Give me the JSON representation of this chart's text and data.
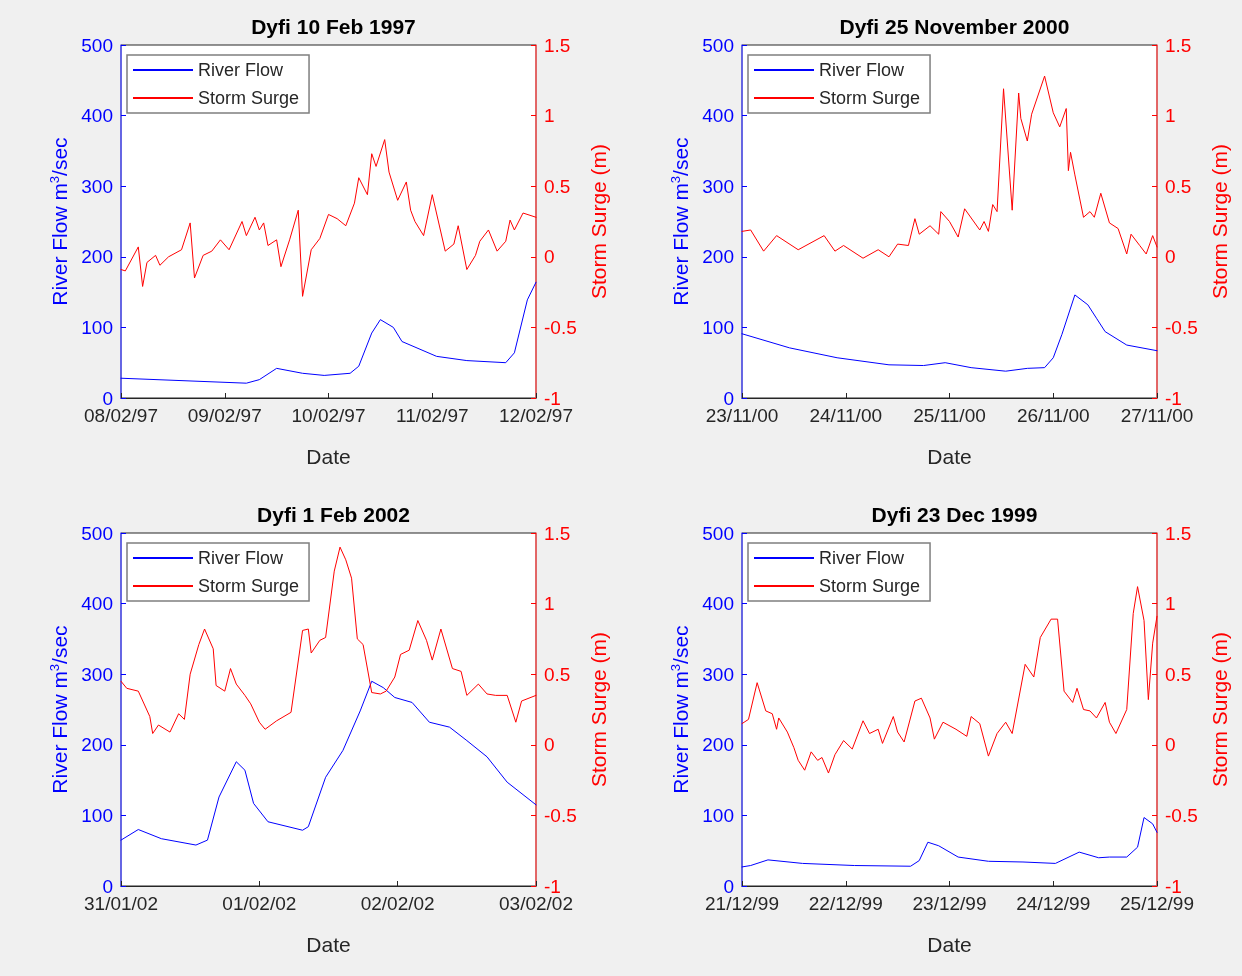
{
  "chart_data": [
    {
      "type": "line",
      "title": "Dyfi 10 Feb 1997",
      "xlabel": "Date",
      "ylabel": "River Flow m$^{3}$/sec",
      "y2label": "Storm Surge (m)",
      "legend": "top left",
      "grid": false,
      "xlim": [
        "1997-02-08T00:00",
        "1997-02-12T00:00"
      ],
      "xticks": [
        {
          "value": "1997-02-08",
          "label": "08/02/97"
        },
        {
          "value": "1997-02-09",
          "label": "09/02/97"
        },
        {
          "value": "1997-02-10",
          "label": "10/02/97"
        },
        {
          "value": "1997-02-11",
          "label": "11/02/97"
        },
        {
          "value": "1997-02-12",
          "label": "12/02/97"
        }
      ],
      "ylim": [
        0,
        500
      ],
      "yticks": [
        0,
        100,
        200,
        300,
        400,
        500
      ],
      "y2lim": [
        -1,
        1.5
      ],
      "y2ticks": [
        -1,
        -0.5,
        0,
        0.5,
        1,
        1.5
      ],
      "series": [
        {
          "name": "River Flow",
          "color": "#0000ff",
          "x": [
            "1997-02-08T00:00",
            "1997-02-09T05:00",
            "1997-02-09T08:00",
            "1997-02-09T12:00",
            "1997-02-09T18:00",
            "1997-02-09T23:00",
            "1997-02-10T05:00",
            "1997-02-10T07:00",
            "1997-02-10T10:00",
            "1997-02-10T12:00",
            "1997-02-10T15:00",
            "1997-02-10T17:00",
            "1997-02-11T01:00",
            "1997-02-11T08:00",
            "1997-02-11T17:00",
            "1997-02-11T19:00",
            "1997-02-11T22:00",
            "1997-02-12T00:00"
          ],
          "values": [
            28,
            21,
            26,
            42,
            35,
            32,
            35,
            45,
            92,
            111,
            100,
            80,
            59,
            53,
            50,
            64,
            139,
            164
          ]
        },
        {
          "name": "Storm Surge",
          "color": "#ff0000",
          "axis": "y2",
          "x": [
            "1997-02-08T00:00",
            "1997-02-08T01:00",
            "1997-02-08T04:00",
            "1997-02-08T05:00",
            "1997-02-08T06:00",
            "1997-02-08T08:00",
            "1997-02-08T09:00",
            "1997-02-08T11:00",
            "1997-02-08T14:00",
            "1997-02-08T16:00",
            "1997-02-08T17:00",
            "1997-02-08T19:00",
            "1997-02-08T21:00",
            "1997-02-08T23:00",
            "1997-02-09T01:00",
            "1997-02-09T04:00",
            "1997-02-09T05:00",
            "1997-02-09T07:00",
            "1997-02-09T08:00",
            "1997-02-09T09:00",
            "1997-02-09T10:00",
            "1997-02-09T12:00",
            "1997-02-09T13:00",
            "1997-02-09T15:00",
            "1997-02-09T17:00",
            "1997-02-09T18:00",
            "1997-02-09T20:00",
            "1997-02-09T22:00",
            "1997-02-10T00:00",
            "1997-02-10T02:00",
            "1997-02-10T04:00",
            "1997-02-10T06:00",
            "1997-02-10T07:00",
            "1997-02-10T09:00",
            "1997-02-10T10:00",
            "1997-02-10T11:00",
            "1997-02-10T13:00",
            "1997-02-10T14:00",
            "1997-02-10T16:00",
            "1997-02-10T18:00",
            "1997-02-10T19:00",
            "1997-02-10T20:00",
            "1997-02-10T22:00",
            "1997-02-11T00:00",
            "1997-02-11T03:00",
            "1997-02-11T05:00",
            "1997-02-11T06:00",
            "1997-02-11T08:00",
            "1997-02-11T10:00",
            "1997-02-11T11:00",
            "1997-02-11T13:00",
            "1997-02-11T15:00",
            "1997-02-11T17:00",
            "1997-02-11T18:00",
            "1997-02-11T19:00",
            "1997-02-11T21:00",
            "1997-02-12T00:00"
          ],
          "values": [
            -0.09,
            -0.1,
            0.07,
            -0.21,
            -0.04,
            0.01,
            -0.06,
            0,
            0.05,
            0.24,
            -0.15,
            0.01,
            0.04,
            0.12,
            0.05,
            0.25,
            0.15,
            0.28,
            0.19,
            0.24,
            0.08,
            0.12,
            -0.07,
            0.12,
            0.33,
            -0.28,
            0.05,
            0.13,
            0.3,
            0.27,
            0.22,
            0.38,
            0.56,
            0.44,
            0.73,
            0.64,
            0.83,
            0.6,
            0.4,
            0.53,
            0.33,
            0.25,
            0.15,
            0.44,
            0.04,
            0.09,
            0.22,
            -0.09,
            0.01,
            0.11,
            0.19,
            0.04,
            0.11,
            0.26,
            0.19,
            0.31,
            0.28
          ]
        }
      ]
    },
    {
      "type": "line",
      "title": "Dyfi 25 November 2000",
      "xlabel": "Date",
      "ylabel": "River Flow m$^{3}$/sec",
      "y2label": "Storm Surge (m)",
      "legend": "top left",
      "grid": false,
      "xlim": [
        "2000-11-23T00:00",
        "2000-11-27T00:00"
      ],
      "xticks": [
        {
          "value": "2000-11-23",
          "label": "23/11/00"
        },
        {
          "value": "2000-11-24",
          "label": "24/11/00"
        },
        {
          "value": "2000-11-25",
          "label": "25/11/00"
        },
        {
          "value": "2000-11-26",
          "label": "26/11/00"
        },
        {
          "value": "2000-11-27",
          "label": "27/11/00"
        }
      ],
      "ylim": [
        0,
        500
      ],
      "yticks": [
        0,
        100,
        200,
        300,
        400,
        500
      ],
      "y2lim": [
        -1,
        1.5
      ],
      "y2ticks": [
        -1,
        -0.5,
        0,
        0.5,
        1,
        1.5
      ],
      "series": [
        {
          "name": "River Flow",
          "color": "#0000ff",
          "x": [
            "2000-11-23T00:00",
            "2000-11-23T11:00",
            "2000-11-23T22:00",
            "2000-11-24T10:00",
            "2000-11-24T18:00",
            "2000-11-24T23:00",
            "2000-11-25T05:00",
            "2000-11-25T13:00",
            "2000-11-25T18:00",
            "2000-11-25T22:00",
            "2000-11-26T00:00",
            "2000-11-26T02:00",
            "2000-11-26T05:00",
            "2000-11-26T08:00",
            "2000-11-26T10:00",
            "2000-11-26T12:00",
            "2000-11-26T17:00",
            "2000-11-27T00:00"
          ],
          "values": [
            91,
            71,
            57,
            47,
            46,
            50,
            43,
            38,
            42,
            43,
            57,
            90,
            146,
            132,
            113,
            94,
            75,
            67
          ]
        },
        {
          "name": "Storm Surge",
          "color": "#ff0000",
          "axis": "y2",
          "x": [
            "2000-11-23T00:00",
            "2000-11-23T02:00",
            "2000-11-23T05:00",
            "2000-11-23T08:00",
            "2000-11-23T13:00",
            "2000-11-23T19:00",
            "2000-11-23T21:30",
            "2000-11-23T23:30",
            "2000-11-24T04:00",
            "2000-11-24T07:30",
            "2000-11-24T10:00",
            "2000-11-24T12:00",
            "2000-11-24T14:30",
            "2000-11-24T16:00",
            "2000-11-24T17:00",
            "2000-11-24T19:30",
            "2000-11-24T21:30",
            "2000-11-24T22:00",
            "2000-11-25T00:00",
            "2000-11-25T02:00",
            "2000-11-25T03:30",
            "2000-11-25T07:00",
            "2000-11-25T08:00",
            "2000-11-25T09:00",
            "2000-11-25T10:00",
            "2000-11-25T11:00",
            "2000-11-25T12:30",
            "2000-11-25T14:30",
            "2000-11-25T16:00",
            "2000-11-25T16:30",
            "2000-11-25T18:00",
            "2000-11-25T19:00",
            "2000-11-25T22:00",
            "2000-11-26T00:00",
            "2000-11-26T01:30",
            "2000-11-26T03:00",
            "2000-11-26T03:30",
            "2000-11-26T04:00",
            "2000-11-26T05:00",
            "2000-11-26T07:00",
            "2000-11-26T08:30",
            "2000-11-26T09:30",
            "2000-11-26T11:00",
            "2000-11-26T13:00",
            "2000-11-26T15:00",
            "2000-11-26T17:00",
            "2000-11-26T18:00",
            "2000-11-26T20:00",
            "2000-11-26T21:30",
            "2000-11-26T23:00",
            "2000-11-27T00:00"
          ],
          "values": [
            0.18,
            0.19,
            0.04,
            0.15,
            0.05,
            0.15,
            0.04,
            0.08,
            -0.01,
            0.05,
            0,
            0.09,
            0.08,
            0.27,
            0.16,
            0.22,
            0.16,
            0.32,
            0.25,
            0.14,
            0.34,
            0.19,
            0.25,
            0.18,
            0.37,
            0.32,
            1.19,
            0.33,
            1.16,
            0.98,
            0.82,
            1.01,
            1.28,
            1.02,
            0.92,
            1.05,
            0.61,
            0.74,
            0.58,
            0.28,
            0.32,
            0.28,
            0.45,
            0.24,
            0.2,
            0.02,
            0.16,
            0.08,
            0.02,
            0.15,
            0.07
          ]
        }
      ]
    },
    {
      "type": "line",
      "title": "Dyfi 1 Feb 2002",
      "xlabel": "Date",
      "ylabel": "River Flow m$^{3}$/sec",
      "y2label": "Storm Surge (m)",
      "legend": "top left",
      "grid": false,
      "xlim": [
        "2002-01-31T00:00",
        "2002-02-03T00:00"
      ],
      "xticks": [
        {
          "value": "2002-01-31",
          "label": "31/01/02"
        },
        {
          "value": "2002-02-01",
          "label": "01/02/02"
        },
        {
          "value": "2002-02-02",
          "label": "02/02/02"
        },
        {
          "value": "2002-02-03",
          "label": "03/02/02"
        }
      ],
      "ylim": [
        0,
        500
      ],
      "yticks": [
        0,
        100,
        200,
        300,
        400,
        500
      ],
      "y2lim": [
        -1,
        1.5
      ],
      "y2ticks": [
        -1,
        -0.5,
        0,
        0.5,
        1,
        1.5
      ],
      "series": [
        {
          "name": "River Flow",
          "color": "#0000ff",
          "x": [
            "2002-01-31T00:00",
            "2002-01-31T03:00",
            "2002-01-31T07:00",
            "2002-01-31T13:00",
            "2002-01-31T15:00",
            "2002-01-31T17:00",
            "2002-01-31T20:00",
            "2002-01-31T21:30",
            "2002-01-31T23:00",
            "2002-02-01T01:30",
            "2002-02-01T07:30",
            "2002-02-01T08:30",
            "2002-02-01T11:30",
            "2002-02-01T14:30",
            "2002-02-01T17:30",
            "2002-02-01T19:30",
            "2002-02-01T21:30",
            "2002-02-01T23:30",
            "2002-02-02T02:30",
            "2002-02-02T05:30",
            "2002-02-02T09:00",
            "2002-02-02T12:00",
            "2002-02-02T15:30",
            "2002-02-02T19:00",
            "2002-02-03T00:00"
          ],
          "values": [
            65,
            80,
            67,
            58,
            65,
            126,
            176,
            164,
            117,
            91,
            79,
            84,
            154,
            192,
            248,
            290,
            281,
            267,
            260,
            232,
            225,
            206,
            183,
            147,
            115
          ]
        },
        {
          "name": "Storm Surge",
          "color": "#ff0000",
          "axis": "y2",
          "x": [
            "2002-01-31T00:00",
            "2002-01-31T01:00",
            "2002-01-31T03:00",
            "2002-01-31T05:00",
            "2002-01-31T05:30",
            "2002-01-31T06:30",
            "2002-01-31T08:30",
            "2002-01-31T10:00",
            "2002-01-31T11:00",
            "2002-01-31T12:00",
            "2002-01-31T13:30",
            "2002-01-31T14:30",
            "2002-01-31T16:00",
            "2002-01-31T16:30",
            "2002-01-31T18:00",
            "2002-01-31T19:00",
            "2002-01-31T20:00",
            "2002-01-31T21:30",
            "2002-01-31T22:30",
            "2002-02-01T00:00",
            "2002-02-01T01:00",
            "2002-02-01T03:00",
            "2002-02-01T05:30",
            "2002-02-01T07:30",
            "2002-02-01T08:30",
            "2002-02-01T09:00",
            "2002-02-01T10:30",
            "2002-02-01T11:30",
            "2002-02-01T13:00",
            "2002-02-01T14:00",
            "2002-02-01T15:00",
            "2002-02-01T16:00",
            "2002-02-01T17:00",
            "2002-02-01T18:00",
            "2002-02-01T19:30",
            "2002-02-01T21:00",
            "2002-02-01T22:00",
            "2002-02-01T23:30",
            "2002-02-02T00:30",
            "2002-02-02T02:00",
            "2002-02-02T03:30",
            "2002-02-02T05:00",
            "2002-02-02T06:00",
            "2002-02-02T07:30",
            "2002-02-02T09:30",
            "2002-02-02T11:00",
            "2002-02-02T12:00",
            "2002-02-02T14:00",
            "2002-02-02T15:30",
            "2002-02-02T17:00",
            "2002-02-02T19:00",
            "2002-02-02T20:30",
            "2002-02-02T21:30",
            "2002-02-03T00:00"
          ],
          "values": [
            0.45,
            0.4,
            0.38,
            0.2,
            0.08,
            0.14,
            0.09,
            0.22,
            0.18,
            0.5,
            0.71,
            0.82,
            0.68,
            0.42,
            0.38,
            0.54,
            0.43,
            0.35,
            0.29,
            0.16,
            0.11,
            0.17,
            0.23,
            0.81,
            0.82,
            0.65,
            0.74,
            0.76,
            1.23,
            1.4,
            1.31,
            1.18,
            0.75,
            0.71,
            0.37,
            0.36,
            0.38,
            0.48,
            0.64,
            0.67,
            0.88,
            0.74,
            0.6,
            0.82,
            0.54,
            0.52,
            0.35,
            0.43,
            0.36,
            0.35,
            0.35,
            0.16,
            0.31,
            0.35
          ]
        }
      ]
    },
    {
      "type": "line",
      "title": "Dyfi 23 Dec 1999",
      "xlabel": "Date",
      "ylabel": "River Flow m$^{3}$/sec",
      "y2label": "Storm Surge (m)",
      "legend": "top left",
      "grid": false,
      "xlim": [
        "1999-12-21T00:00",
        "1999-12-25T00:00"
      ],
      "xticks": [
        {
          "value": "1999-12-21",
          "label": "21/12/99"
        },
        {
          "value": "1999-12-22",
          "label": "22/12/99"
        },
        {
          "value": "1999-12-23",
          "label": "23/12/99"
        },
        {
          "value": "1999-12-24",
          "label": "24/12/99"
        },
        {
          "value": "1999-12-25",
          "label": "25/12/99"
        }
      ],
      "ylim": [
        0,
        500
      ],
      "yticks": [
        0,
        100,
        200,
        300,
        400,
        500
      ],
      "y2lim": [
        -1,
        1.5
      ],
      "y2ticks": [
        -1,
        -0.5,
        0,
        0.5,
        1,
        1.5
      ],
      "series": [
        {
          "name": "River Flow",
          "color": "#0000ff",
          "x": [
            "1999-12-21T00:00",
            "1999-12-21T02:00",
            "1999-12-21T06:00",
            "1999-12-21T14:00",
            "1999-12-22T02:00",
            "1999-12-22T15:00",
            "1999-12-22T17:00",
            "1999-12-22T19:00",
            "1999-12-22T21:30",
            "1999-12-23T02:00",
            "1999-12-23T09:00",
            "1999-12-23T17:00",
            "1999-12-24T00:30",
            "1999-12-24T06:00",
            "1999-12-24T10:30",
            "1999-12-24T13:00",
            "1999-12-24T17:00",
            "1999-12-24T19:30",
            "1999-12-24T21:00",
            "1999-12-24T23:00",
            "1999-12-25T00:00"
          ],
          "values": [
            27,
            29,
            37,
            32,
            29,
            28,
            36,
            62,
            57,
            41,
            35,
            34,
            32,
            48,
            40,
            41,
            41,
            55,
            97,
            88,
            76
          ]
        },
        {
          "name": "Storm Surge",
          "color": "#ff0000",
          "axis": "y2",
          "x": [
            "1999-12-21T00:00",
            "1999-12-21T01:30",
            "1999-12-21T03:30",
            "1999-12-21T05:30",
            "1999-12-21T07:00",
            "1999-12-21T08:00",
            "1999-12-21T08:30",
            "1999-12-21T10:30",
            "1999-12-21T12:00",
            "1999-12-21T13:00",
            "1999-12-21T14:30",
            "1999-12-21T16:00",
            "1999-12-21T17:30",
            "1999-12-21T18:30",
            "1999-12-21T20:00",
            "1999-12-21T21:30",
            "1999-12-21T23:30",
            "1999-12-22T01:30",
            "1999-12-22T04:00",
            "1999-12-22T05:30",
            "1999-12-22T07:30",
            "1999-12-22T08:30",
            "1999-12-22T11:00",
            "1999-12-22T12:00",
            "1999-12-22T13:30",
            "1999-12-22T16:00",
            "1999-12-22T17:30",
            "1999-12-22T19:30",
            "1999-12-22T20:30",
            "1999-12-22T22:30",
            "1999-12-23T01:30",
            "1999-12-23T04:00",
            "1999-12-23T05:00",
            "1999-12-23T07:00",
            "1999-12-23T09:00",
            "1999-12-23T11:00",
            "1999-12-23T13:00",
            "1999-12-23T14:30",
            "1999-12-23T17:30",
            "1999-12-23T19:30",
            "1999-12-23T21:00",
            "1999-12-23T23:30",
            "1999-12-24T01:00",
            "1999-12-24T02:30",
            "1999-12-24T04:30",
            "1999-12-24T05:30",
            "1999-12-24T07:00",
            "1999-12-24T08:30",
            "1999-12-24T10:00",
            "1999-12-24T12:00",
            "1999-12-24T13:00",
            "1999-12-24T14:30",
            "1999-12-24T17:00",
            "1999-12-24T18:30",
            "1999-12-24T19:30",
            "1999-12-24T21:00",
            "1999-12-24T22:00",
            "1999-12-24T23:00",
            "1999-12-25T00:00"
          ],
          "values": [
            0.15,
            0.18,
            0.44,
            0.24,
            0.22,
            0.11,
            0.19,
            0.09,
            -0.02,
            -0.11,
            -0.18,
            -0.05,
            -0.11,
            -0.09,
            -0.2,
            -0.07,
            0.03,
            -0.03,
            0.17,
            0.08,
            0.11,
            0.01,
            0.2,
            0.09,
            0.02,
            0.31,
            0.33,
            0.19,
            0.04,
            0.16,
            0.11,
            0.06,
            0.2,
            0.15,
            -0.08,
            0.08,
            0.16,
            0.08,
            0.57,
            0.48,
            0.76,
            0.89,
            0.89,
            0.38,
            0.3,
            0.4,
            0.25,
            0.24,
            0.19,
            0.3,
            0.16,
            0.08,
            0.25,
            0.93,
            1.12,
            0.88,
            0.32,
            0.72,
            0.91
          ]
        }
      ]
    }
  ]
}
